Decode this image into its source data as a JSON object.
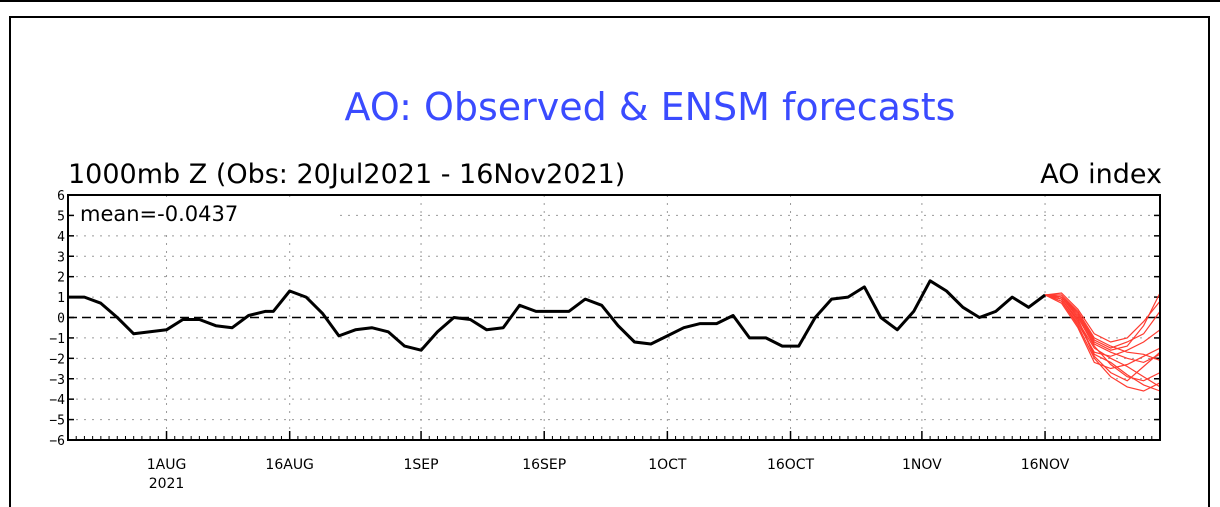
{
  "chart_data": {
    "type": "line",
    "title": "AO: Observed & ENSM forecasts",
    "subtitle": "1000mb Z (Obs: 20Jul2021 - 16Nov2021)",
    "ylabel": "AO index",
    "annotation": "mean=-0.0437",
    "ylim": [
      -6,
      6
    ],
    "xlim": [
      "2021-07-20",
      "2021-11-30"
    ],
    "grid": true,
    "x_tick_labels": [
      {
        "date": "2021-08-01",
        "label": "1AUG",
        "sublabel": "2021"
      },
      {
        "date": "2021-08-16",
        "label": "16AUG",
        "sublabel": ""
      },
      {
        "date": "2021-09-01",
        "label": "1SEP",
        "sublabel": ""
      },
      {
        "date": "2021-09-16",
        "label": "16SEP",
        "sublabel": ""
      },
      {
        "date": "2021-10-01",
        "label": "1OCT",
        "sublabel": ""
      },
      {
        "date": "2021-10-16",
        "label": "16OCT",
        "sublabel": ""
      },
      {
        "date": "2021-11-01",
        "label": "1NOV",
        "sublabel": ""
      },
      {
        "date": "2021-11-16",
        "label": "16NOV",
        "sublabel": ""
      }
    ],
    "y_ticks": [
      -6,
      -5,
      -4,
      -3,
      -2,
      -1,
      0,
      1,
      2,
      3,
      4,
      5,
      6
    ],
    "colors": {
      "observed": "#000000",
      "forecast": "#ff3b30",
      "title": "#3a4bff"
    },
    "observed": {
      "dates": [
        "2021-07-20",
        "2021-07-22",
        "2021-07-24",
        "2021-07-26",
        "2021-07-28",
        "2021-07-30",
        "2021-08-01",
        "2021-08-03",
        "2021-08-05",
        "2021-08-07",
        "2021-08-09",
        "2021-08-11",
        "2021-08-13",
        "2021-08-14",
        "2021-08-16",
        "2021-08-18",
        "2021-08-20",
        "2021-08-22",
        "2021-08-24",
        "2021-08-26",
        "2021-08-28",
        "2021-08-30",
        "2021-09-01",
        "2021-09-03",
        "2021-09-05",
        "2021-09-07",
        "2021-09-09",
        "2021-09-11",
        "2021-09-13",
        "2021-09-15",
        "2021-09-17",
        "2021-09-19",
        "2021-09-21",
        "2021-09-23",
        "2021-09-25",
        "2021-09-27",
        "2021-09-29",
        "2021-10-01",
        "2021-10-03",
        "2021-10-05",
        "2021-10-07",
        "2021-10-09",
        "2021-10-11",
        "2021-10-13",
        "2021-10-15",
        "2021-10-17",
        "2021-10-19",
        "2021-10-21",
        "2021-10-23",
        "2021-10-25",
        "2021-10-27",
        "2021-10-29",
        "2021-10-31",
        "2021-11-02",
        "2021-11-04",
        "2021-11-06",
        "2021-11-08",
        "2021-11-10",
        "2021-11-12",
        "2021-11-14",
        "2021-11-16"
      ],
      "values": [
        1.0,
        1.0,
        0.7,
        0.0,
        -0.8,
        -0.7,
        -0.6,
        -0.1,
        -0.1,
        -0.4,
        -0.5,
        0.1,
        0.3,
        0.3,
        1.3,
        1.0,
        0.2,
        -0.9,
        -0.6,
        -0.5,
        -0.7,
        -1.4,
        -1.6,
        -0.7,
        0.0,
        -0.1,
        -0.6,
        -0.5,
        0.6,
        0.3,
        0.3,
        0.3,
        0.9,
        0.6,
        -0.4,
        -1.2,
        -1.3,
        -0.9,
        -0.5,
        -0.3,
        -0.3,
        0.1,
        -1.0,
        -1.0,
        -1.4,
        -1.4,
        0.0,
        0.9,
        1.0,
        1.5,
        0.0,
        -0.6,
        0.3,
        1.8,
        1.3,
        0.5,
        0.0,
        0.3,
        1.0,
        0.5,
        1.1
      ]
    },
    "forecast": {
      "dates": [
        "2021-11-16",
        "2021-11-18",
        "2021-11-20",
        "2021-11-22",
        "2021-11-24",
        "2021-11-26",
        "2021-11-28",
        "2021-11-30"
      ],
      "members": [
        [
          1.1,
          0.9,
          -0.1,
          -1.8,
          -2.2,
          -2.8,
          -3.3,
          -3.6
        ],
        [
          1.1,
          1.1,
          0.2,
          -1.2,
          -1.6,
          -1.4,
          -0.4,
          1.2
        ],
        [
          1.1,
          0.8,
          -0.4,
          -2.0,
          -2.9,
          -3.4,
          -3.6,
          -3.2
        ],
        [
          1.1,
          1.0,
          0.1,
          -1.3,
          -1.7,
          -2.0,
          -2.2,
          -1.8
        ],
        [
          1.1,
          0.7,
          -0.5,
          -2.2,
          -2.5,
          -2.3,
          -1.9,
          -1.5
        ],
        [
          1.1,
          1.2,
          0.4,
          -0.8,
          -1.2,
          -1.0,
          -0.2,
          0.8
        ],
        [
          1.1,
          0.9,
          -0.2,
          -1.5,
          -2.0,
          -2.4,
          -2.9,
          -3.4
        ],
        [
          1.1,
          1.0,
          0.0,
          -1.4,
          -2.3,
          -2.9,
          -3.1,
          -2.7
        ],
        [
          1.1,
          0.8,
          -0.3,
          -1.7,
          -1.9,
          -1.6,
          -1.2,
          -0.6
        ],
        [
          1.1,
          1.1,
          0.3,
          -1.0,
          -1.4,
          -1.7,
          -1.8,
          -2.1
        ],
        [
          1.1,
          0.9,
          -0.1,
          -1.9,
          -2.7,
          -3.1,
          -2.4,
          -1.7
        ],
        [
          1.1,
          1.0,
          0.2,
          -1.1,
          -1.5,
          -1.2,
          -0.8,
          0.3
        ]
      ]
    }
  }
}
